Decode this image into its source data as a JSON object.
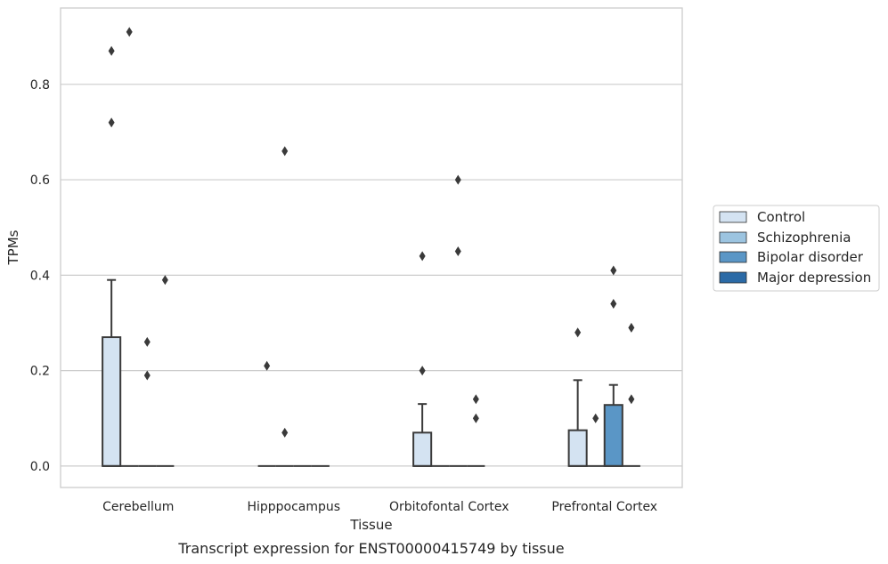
{
  "caption": "Transcript expression for ENST00000415749 by tissue",
  "chart_data": {
    "type": "box",
    "xlabel": "Tissue",
    "ylabel": "TPMs",
    "categories": [
      "Cerebellum",
      "Hipppocampus",
      "Orbitofontal Cortex",
      "Prefrontal Cortex"
    ],
    "ylim": [
      -0.045,
      0.96
    ],
    "yticks": [
      0.0,
      0.2,
      0.4,
      0.6,
      0.8
    ],
    "ytick_labels": [
      "0.0",
      "0.2",
      "0.4",
      "0.6",
      "0.8"
    ],
    "grid": true,
    "legend_position": "right",
    "series": [
      {
        "name": "Control",
        "color": "#d4e3f2",
        "boxes": [
          {
            "q1": 0.0,
            "median": 0.0,
            "q3": 0.27,
            "whisker_low": 0.0,
            "whisker_high": 0.39,
            "outliers": [
              0.72,
              0.87
            ]
          },
          {
            "q1": 0.0,
            "median": 0.0,
            "q3": 0.0,
            "whisker_low": 0.0,
            "whisker_high": 0.0,
            "outliers": [
              0.21
            ]
          },
          {
            "q1": 0.0,
            "median": 0.0,
            "q3": 0.07,
            "whisker_low": 0.0,
            "whisker_high": 0.13,
            "outliers": [
              0.2,
              0.44
            ]
          },
          {
            "q1": 0.0,
            "median": 0.0,
            "q3": 0.075,
            "whisker_low": 0.0,
            "whisker_high": 0.18,
            "outliers": [
              0.28
            ]
          }
        ]
      },
      {
        "name": "Schizophrenia",
        "color": "#9cc4e0",
        "boxes": [
          {
            "q1": 0.0,
            "median": 0.0,
            "q3": 0.0,
            "whisker_low": 0.0,
            "whisker_high": 0.0,
            "outliers": [
              0.91
            ]
          },
          {
            "q1": 0.0,
            "median": 0.0,
            "q3": 0.0,
            "whisker_low": 0.0,
            "whisker_high": 0.0,
            "outliers": [
              0.07,
              0.66
            ]
          },
          {
            "q1": 0.0,
            "median": 0.0,
            "q3": 0.0,
            "whisker_low": 0.0,
            "whisker_high": 0.0,
            "outliers": []
          },
          {
            "q1": 0.0,
            "median": 0.0,
            "q3": 0.0,
            "whisker_low": 0.0,
            "whisker_high": 0.0,
            "outliers": [
              0.1
            ]
          }
        ]
      },
      {
        "name": "Bipolar disorder",
        "color": "#5a96c6",
        "boxes": [
          {
            "q1": 0.0,
            "median": 0.0,
            "q3": 0.0,
            "whisker_low": 0.0,
            "whisker_high": 0.0,
            "outliers": [
              0.19,
              0.26
            ]
          },
          {
            "q1": 0.0,
            "median": 0.0,
            "q3": 0.0,
            "whisker_low": 0.0,
            "whisker_high": 0.0,
            "outliers": []
          },
          {
            "q1": 0.0,
            "median": 0.0,
            "q3": 0.0,
            "whisker_low": 0.0,
            "whisker_high": 0.0,
            "outliers": [
              0.45,
              0.6
            ]
          },
          {
            "q1": 0.0,
            "median": 0.0,
            "q3": 0.128,
            "whisker_low": 0.0,
            "whisker_high": 0.17,
            "outliers": [
              0.34,
              0.41
            ]
          }
        ]
      },
      {
        "name": "Major depression",
        "color": "#2b6aa6",
        "boxes": [
          {
            "q1": 0.0,
            "median": 0.0,
            "q3": 0.0,
            "whisker_low": 0.0,
            "whisker_high": 0.0,
            "outliers": [
              0.39
            ]
          },
          {
            "q1": 0.0,
            "median": 0.0,
            "q3": 0.0,
            "whisker_low": 0.0,
            "whisker_high": 0.0,
            "outliers": []
          },
          {
            "q1": 0.0,
            "median": 0.0,
            "q3": 0.0,
            "whisker_low": 0.0,
            "whisker_high": 0.0,
            "outliers": [
              0.1,
              0.14
            ]
          },
          {
            "q1": 0.0,
            "median": 0.0,
            "q3": 0.0,
            "whisker_low": 0.0,
            "whisker_high": 0.0,
            "outliers": [
              0.14,
              0.29
            ]
          }
        ]
      }
    ]
  }
}
